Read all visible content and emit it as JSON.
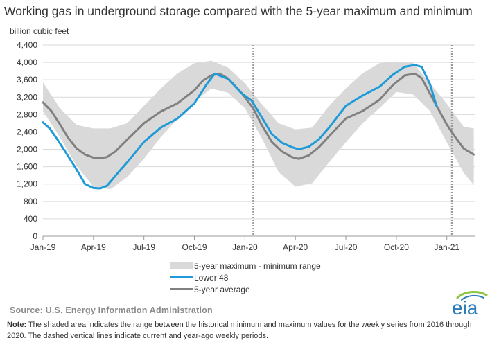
{
  "chart_data": {
    "type": "line",
    "title": "Working gas in underground storage compared with the 5-year maximum and minimum",
    "ylabel": "billion cubic feet",
    "xlabel": "",
    "ylim": [
      0,
      4400
    ],
    "y_ticks": [
      "0",
      "400",
      "800",
      "1,200",
      "1,600",
      "2,000",
      "2,400",
      "2,800",
      "3,200",
      "3,600",
      "4,000",
      "4,400"
    ],
    "x_ticks": [
      "Jan-19",
      "Apr-19",
      "Jul-19",
      "Oct-19",
      "Jan-20",
      "Apr-20",
      "Jul-20",
      "Oct-20",
      "Jan-21"
    ],
    "x_unit": "months since Jan-19",
    "xlim": [
      0,
      25.7
    ],
    "grid": "horizontal",
    "legend_position": "bottom-center",
    "dashed_reference_lines": [
      12.5,
      24.3
    ],
    "series": [
      {
        "name": "5-year maximum - minimum range",
        "kind": "band",
        "color": "#d9d9d9",
        "x": [
          0,
          1,
          2,
          3,
          4,
          5,
          6,
          7,
          8,
          9,
          10,
          11,
          12,
          13,
          14,
          15,
          16,
          17,
          18,
          19,
          20,
          21,
          22,
          23,
          24,
          25,
          25.6
        ],
        "max": [
          3540,
          2950,
          2560,
          2480,
          2480,
          2600,
          3000,
          3400,
          3750,
          3980,
          4040,
          3880,
          3520,
          3040,
          2600,
          2460,
          2500,
          3000,
          3400,
          3750,
          3980,
          4020,
          3990,
          3520,
          3050,
          2520,
          2480
        ],
        "min": [
          2880,
          2280,
          1620,
          1140,
          1080,
          1360,
          1780,
          2280,
          2700,
          3100,
          3400,
          3300,
          2950,
          2260,
          1480,
          1140,
          1220,
          1700,
          2160,
          2600,
          2950,
          3320,
          3260,
          2880,
          2160,
          1460,
          1180
        ]
      },
      {
        "name": "Lower 48",
        "kind": "line",
        "color": "#1e9ad6",
        "x": [
          0,
          0.4,
          0.9,
          1.5,
          2,
          2.5,
          3,
          3.4,
          3.8,
          4.5,
          5,
          6,
          7,
          8,
          9,
          9.7,
          10.2,
          11,
          11.8,
          12.4,
          13,
          13.6,
          14.2,
          14.8,
          15.2,
          15.8,
          16.4,
          17,
          18,
          19,
          20,
          20.8,
          21.5,
          22.1,
          22.5,
          23,
          23.4
        ],
        "values": [
          2620,
          2480,
          2200,
          1840,
          1530,
          1200,
          1110,
          1100,
          1160,
          1480,
          1700,
          2170,
          2500,
          2710,
          3060,
          3480,
          3740,
          3620,
          3290,
          3120,
          2740,
          2350,
          2150,
          2050,
          2000,
          2060,
          2230,
          2500,
          3000,
          3240,
          3440,
          3720,
          3900,
          3940,
          3900,
          3500,
          2980
        ]
      },
      {
        "name": "5-year average",
        "kind": "line",
        "color": "#808080",
        "x": [
          0,
          0.5,
          1,
          1.5,
          2,
          2.5,
          3,
          3.4,
          3.8,
          4.3,
          5,
          6,
          7,
          8,
          9,
          9.5,
          10,
          10.5,
          11,
          11.8,
          12.5,
          13,
          13.6,
          14.2,
          14.8,
          15.2,
          15.8,
          16.4,
          17,
          18,
          19,
          20,
          20.8,
          21.5,
          22.1,
          22.5,
          23,
          24,
          24.5,
          25,
          25.6
        ],
        "values": [
          3080,
          2880,
          2580,
          2260,
          2020,
          1880,
          1810,
          1800,
          1820,
          1950,
          2220,
          2600,
          2870,
          3060,
          3360,
          3580,
          3700,
          3740,
          3630,
          3300,
          2940,
          2560,
          2170,
          1950,
          1820,
          1780,
          1860,
          2050,
          2300,
          2710,
          2880,
          3140,
          3480,
          3700,
          3740,
          3640,
          3280,
          2570,
          2280,
          2020,
          1880
        ]
      }
    ]
  },
  "legend": [
    {
      "label": "5-year maximum - minimum range",
      "color": "#d9d9d9"
    },
    {
      "label": "Lower 48",
      "color": "#1e9ad6"
    },
    {
      "label": "5-year average",
      "color": "#808080"
    }
  ],
  "source_text": "Source: U.S. Energy Information Administration",
  "note_label": "Note:",
  "note_text": " The shaded area indicates the range between the historical minimum and maximum values for the weekly series from 2016 through 2020. The dashed vertical lines indicate current and year-ago weekly periods.",
  "logo_text": "eia",
  "logo_color": "#2b7bb9"
}
